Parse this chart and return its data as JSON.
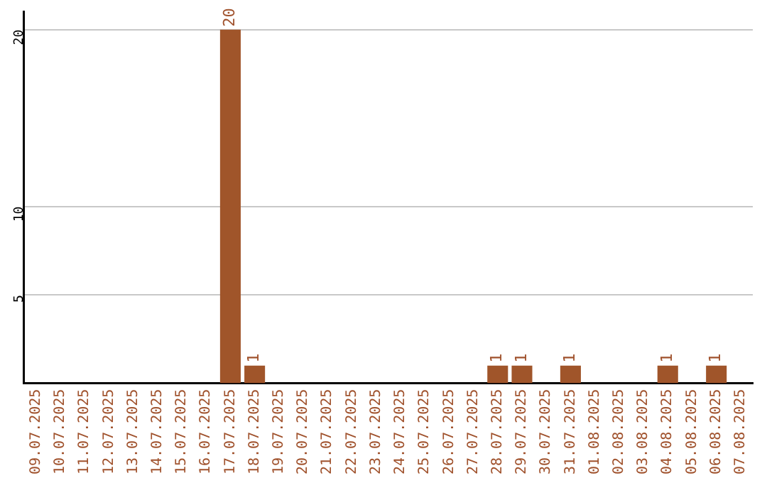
{
  "chart_data": {
    "type": "bar",
    "categories": [
      "09.07.2025",
      "10.07.2025",
      "11.07.2025",
      "12.07.2025",
      "13.07.2025",
      "14.07.2025",
      "15.07.2025",
      "16.07.2025",
      "17.07.2025",
      "18.07.2025",
      "19.07.2025",
      "20.07.2025",
      "21.07.2025",
      "22.07.2025",
      "23.07.2025",
      "24.07.2025",
      "25.07.2025",
      "26.07.2025",
      "27.07.2025",
      "28.07.2025",
      "29.07.2025",
      "30.07.2025",
      "31.07.2025",
      "01.08.2025",
      "02.08.2025",
      "03.08.2025",
      "04.08.2025",
      "05.08.2025",
      "06.08.2025",
      "07.08.2025"
    ],
    "values": [
      0,
      0,
      0,
      0,
      0,
      0,
      0,
      0,
      20,
      1,
      0,
      0,
      0,
      0,
      0,
      0,
      0,
      0,
      0,
      1,
      1,
      0,
      1,
      0,
      0,
      0,
      1,
      0,
      1,
      0
    ],
    "value_labels": [
      null,
      null,
      null,
      null,
      null,
      null,
      null,
      null,
      "20",
      "1",
      null,
      null,
      null,
      null,
      null,
      null,
      null,
      null,
      null,
      "1",
      "1",
      null,
      "1",
      null,
      null,
      null,
      "1",
      null,
      "1",
      null
    ],
    "color": "#a0552a",
    "ylim": [
      0,
      21
    ],
    "yticks": [
      5,
      10,
      20
    ],
    "grid": "y",
    "legend": false
  }
}
